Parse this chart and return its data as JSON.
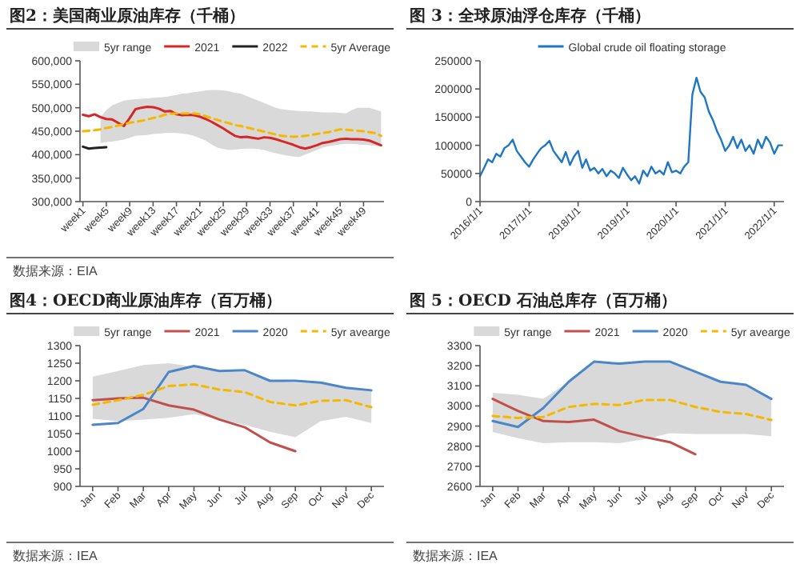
{
  "chart_data": [
    {
      "type": "line",
      "title": "图2：美国商业原油库存（千桶）",
      "legend": "top",
      "legend_title": "5yr range",
      "annotations": [
        "数据来源：EIA"
      ],
      "categories": [
        "week1",
        null,
        null,
        null,
        "week5",
        null,
        null,
        null,
        "week9",
        null,
        null,
        null,
        "week13",
        null,
        null,
        null,
        "week17",
        null,
        null,
        null,
        "week21",
        null,
        null,
        null,
        "week25",
        null,
        null,
        null,
        "week29",
        null,
        null,
        null,
        "week33",
        null,
        null,
        null,
        "week37",
        null,
        null,
        null,
        "week41",
        null,
        null,
        null,
        "week45",
        null,
        null,
        null,
        "week49",
        null,
        null,
        null
      ],
      "ylim": [
        300000,
        600000
      ],
      "yticks": [
        {
          "value": 300000,
          "label": "300,000"
        },
        {
          "value": 350000,
          "label": "350,000"
        },
        {
          "value": 400000,
          "label": "400,000"
        },
        {
          "value": 450000,
          "label": "450,000"
        },
        {
          "value": 500000,
          "label": "500,000"
        },
        {
          "value": 550000,
          "label": "550,000"
        },
        {
          "value": 600000,
          "label": "600,000"
        }
      ],
      "series": [
        {
          "name": "2021",
          "type": "line",
          "color": "#d62728",
          "values": [
            485000,
            482000,
            486000,
            480000,
            476000,
            475000,
            468000,
            461000,
            478000,
            497000,
            500000,
            502000,
            501000,
            498000,
            492000,
            493000,
            486000,
            484000,
            485000,
            484000,
            481000,
            476000,
            470000,
            463000,
            456000,
            448000,
            440000,
            437000,
            438000,
            436000,
            434000,
            437000,
            436000,
            433000,
            429000,
            425000,
            421000,
            416000,
            413000,
            416000,
            420000,
            425000,
            427000,
            430000,
            433000,
            434000,
            433000,
            433000,
            432000,
            430000,
            425000,
            420000
          ]
        },
        {
          "name": "2022",
          "type": "line",
          "color": "#222222",
          "values": [
            417000,
            413000,
            414000,
            415000,
            416000,
            null,
            null,
            null,
            null,
            null,
            null,
            null,
            null,
            null,
            null,
            null,
            null,
            null,
            null,
            null,
            null,
            null,
            null,
            null,
            null,
            null,
            null,
            null,
            null,
            null,
            null,
            null,
            null,
            null,
            null,
            null,
            null,
            null,
            null,
            null,
            null,
            null,
            null,
            null,
            null,
            null,
            null,
            null,
            null,
            null,
            null,
            null
          ]
        },
        {
          "name": "5yr Average",
          "type": "line",
          "line_style": "dashed",
          "color": "#f5b800",
          "values": [
            450000,
            451000,
            452000,
            454000,
            457000,
            459000,
            462000,
            465000,
            468000,
            470000,
            472000,
            475000,
            478000,
            481000,
            485000,
            487000,
            488000,
            488000,
            488000,
            488000,
            486000,
            482000,
            478000,
            474000,
            470000,
            467000,
            463000,
            461000,
            458000,
            455000,
            452000,
            449000,
            446000,
            443000,
            440000,
            439000,
            438000,
            439000,
            440000,
            442000,
            444000,
            446000,
            448000,
            451000,
            454000,
            453000,
            452000,
            451000,
            450000,
            448000,
            446000,
            440000
          ],
          "upper": [
            null,
            null,
            null,
            480000,
            495000,
            505000,
            510000,
            515000,
            517000,
            518000,
            519000,
            520000,
            521000,
            522000,
            523000,
            525000,
            527000,
            530000,
            531000,
            533000,
            535000,
            537000,
            538000,
            538000,
            537000,
            535000,
            532000,
            530000,
            525000,
            520000,
            515000,
            510000,
            505000,
            500000,
            497000,
            495000,
            494000,
            493000,
            492000,
            492000,
            491000,
            490000,
            490000,
            490000,
            489000,
            488000,
            495000,
            500000,
            500000,
            500000,
            496000,
            492000
          ],
          "lower": [
            null,
            null,
            null,
            425000,
            427000,
            428000,
            430000,
            432000,
            436000,
            440000,
            441000,
            442000,
            444000,
            445000,
            446000,
            446000,
            446000,
            445000,
            443000,
            440000,
            435000,
            430000,
            422000,
            415000,
            412000,
            410000,
            411000,
            412000,
            413000,
            413000,
            412000,
            410000,
            406000,
            403000,
            400000,
            398000,
            396000,
            395000,
            400000,
            405000,
            410000,
            415000,
            418000,
            420000,
            422000,
            423000,
            423000,
            422000,
            421000,
            420000,
            419000,
            418000
          ]
        }
      ]
    },
    {
      "type": "line",
      "title": "图 3：全球原油浮仓库存（千桶）",
      "legend": "top",
      "xlim": [
        "2016-01-01",
        "2022-03-15"
      ],
      "xticks": [
        {
          "value": "2016-01-01",
          "label": "2016/1/1"
        },
        {
          "value": "2017-01-01",
          "label": "2017/1/1"
        },
        {
          "value": "2018-01-01",
          "label": "2018/1/1"
        },
        {
          "value": "2019-01-01",
          "label": "2019/1/1"
        },
        {
          "value": "2020-01-01",
          "label": "2020/1/1"
        },
        {
          "value": "2021-01-01",
          "label": "2021/1/1"
        },
        {
          "value": "2022-01-01",
          "label": "2022/1/1"
        }
      ],
      "ylim": [
        0,
        250000
      ],
      "yticks": [
        0,
        50000,
        100000,
        150000,
        200000,
        250000
      ],
      "series": [
        {
          "name": "Global crude oil floating storage",
          "type": "line",
          "color": "#1f77c4",
          "x": [
            "2016-01-01",
            "2016-02-01",
            "2016-03-01",
            "2016-04-01",
            "2016-05-01",
            "2016-06-01",
            "2016-07-01",
            "2016-08-01",
            "2016-09-01",
            "2016-10-01",
            "2016-11-01",
            "2016-12-01",
            "2017-01-01",
            "2017-02-01",
            "2017-03-01",
            "2017-04-01",
            "2017-05-01",
            "2017-06-01",
            "2017-07-01",
            "2017-08-01",
            "2017-09-01",
            "2017-10-01",
            "2017-11-01",
            "2017-12-01",
            "2018-01-01",
            "2018-02-01",
            "2018-03-01",
            "2018-04-01",
            "2018-05-01",
            "2018-06-01",
            "2018-07-01",
            "2018-08-01",
            "2018-09-01",
            "2018-10-01",
            "2018-11-01",
            "2018-12-01",
            "2019-01-01",
            "2019-02-01",
            "2019-03-01",
            "2019-04-01",
            "2019-05-01",
            "2019-06-01",
            "2019-07-01",
            "2019-08-01",
            "2019-09-01",
            "2019-10-01",
            "2019-11-01",
            "2019-12-01",
            "2020-01-01",
            "2020-02-01",
            "2020-03-01",
            "2020-04-01",
            "2020-05-01",
            "2020-06-01",
            "2020-07-01",
            "2020-08-01",
            "2020-09-01",
            "2020-10-01",
            "2020-11-01",
            "2020-12-01",
            "2021-01-01",
            "2021-02-01",
            "2021-03-01",
            "2021-04-01",
            "2021-05-01",
            "2021-06-01",
            "2021-07-01",
            "2021-08-01",
            "2021-09-01",
            "2021-10-01",
            "2021-11-01",
            "2021-12-01",
            "2022-01-01",
            "2022-02-01",
            "2022-03-01"
          ],
          "values": [
            45000,
            60000,
            75000,
            70000,
            85000,
            80000,
            95000,
            100000,
            110000,
            90000,
            80000,
            70000,
            62000,
            75000,
            85000,
            95000,
            100000,
            108000,
            90000,
            80000,
            70000,
            88000,
            65000,
            80000,
            90000,
            60000,
            75000,
            55000,
            60000,
            50000,
            58000,
            45000,
            55000,
            50000,
            42000,
            60000,
            48000,
            38000,
            45000,
            32000,
            55000,
            45000,
            62000,
            50000,
            55000,
            48000,
            70000,
            52000,
            55000,
            50000,
            62000,
            70000,
            190000,
            220000,
            195000,
            185000,
            160000,
            145000,
            125000,
            110000,
            90000,
            100000,
            115000,
            95000,
            110000,
            90000,
            100000,
            85000,
            110000,
            95000,
            115000,
            105000,
            85000,
            100000,
            100000
          ]
        }
      ]
    },
    {
      "type": "line",
      "title": "图4：OECD商业原油库存（百万桶）",
      "legend": "top",
      "legend_title": "5yr range",
      "annotations": [
        "数据来源：IEA"
      ],
      "categories": [
        "Jan",
        "Feb",
        "Mar",
        "Apr",
        "May",
        "Jun",
        "Jul",
        "Aug",
        "Sep",
        "Oct",
        "Nov",
        "Dec"
      ],
      "ylim": [
        900,
        1300
      ],
      "yticks": [
        900,
        950,
        1000,
        1050,
        1100,
        1150,
        1200,
        1250,
        1300
      ],
      "series": [
        {
          "name": "2021",
          "type": "line",
          "color": "#c0504d",
          "values": [
            1145,
            1150,
            1152,
            1130,
            1118,
            1090,
            1068,
            1025,
            1000,
            null,
            null,
            null
          ]
        },
        {
          "name": "2020",
          "type": "line",
          "color": "#4a86c8",
          "values": [
            1075,
            1080,
            1120,
            1225,
            1242,
            1228,
            1230,
            1200,
            1200,
            1195,
            1180,
            1173
          ]
        },
        {
          "name": "5yr avearge",
          "type": "line",
          "line_style": "dashed",
          "color": "#f5b800",
          "values": [
            1132,
            1145,
            1160,
            1185,
            1190,
            1175,
            1168,
            1140,
            1130,
            1143,
            1145,
            1125
          ],
          "upper": [
            1212,
            1228,
            1245,
            1250,
            1240,
            1228,
            1225,
            1200,
            1195,
            1193,
            1180,
            1172
          ],
          "lower": [
            1092,
            1085,
            1090,
            1095,
            1105,
            1090,
            1075,
            1055,
            1040,
            1085,
            1098,
            1080
          ]
        }
      ]
    },
    {
      "type": "line",
      "title": "图 5：OECD 石油总库存（百万桶）",
      "legend": "top",
      "legend_title": "5yr range",
      "annotations": [
        "数据来源：IEA"
      ],
      "categories": [
        "Jan",
        "Feb",
        "Mar",
        "Apr",
        "May",
        "Jun",
        "Jul",
        "Aug",
        "Sep",
        "Oct",
        "Nov",
        "Dec"
      ],
      "ylim": [
        2600,
        3300
      ],
      "yticks": [
        2600,
        2700,
        2800,
        2900,
        3000,
        3100,
        3200,
        3300
      ],
      "series": [
        {
          "name": "2021",
          "type": "line",
          "color": "#c0504d",
          "values": [
            3035,
            2975,
            2925,
            2920,
            2932,
            2875,
            2845,
            2820,
            2760,
            null,
            null,
            null
          ]
        },
        {
          "name": "2020",
          "type": "line",
          "color": "#4a86c8",
          "values": [
            2925,
            2895,
            2990,
            3120,
            3220,
            3210,
            3220,
            3220,
            3170,
            3120,
            3105,
            3035
          ]
        },
        {
          "name": "5yr avearge",
          "type": "line",
          "line_style": "dashed",
          "color": "#f5b800",
          "values": [
            2950,
            2940,
            2945,
            2995,
            3010,
            3005,
            3030,
            3030,
            2995,
            2970,
            2960,
            2930
          ],
          "upper": [
            3065,
            3055,
            3035,
            3120,
            3215,
            3210,
            3215,
            3215,
            3165,
            3115,
            3100,
            3030
          ],
          "lower": [
            2870,
            2840,
            2815,
            2820,
            2820,
            2815,
            2835,
            2865,
            2860,
            2860,
            2860,
            2850
          ]
        }
      ]
    }
  ]
}
